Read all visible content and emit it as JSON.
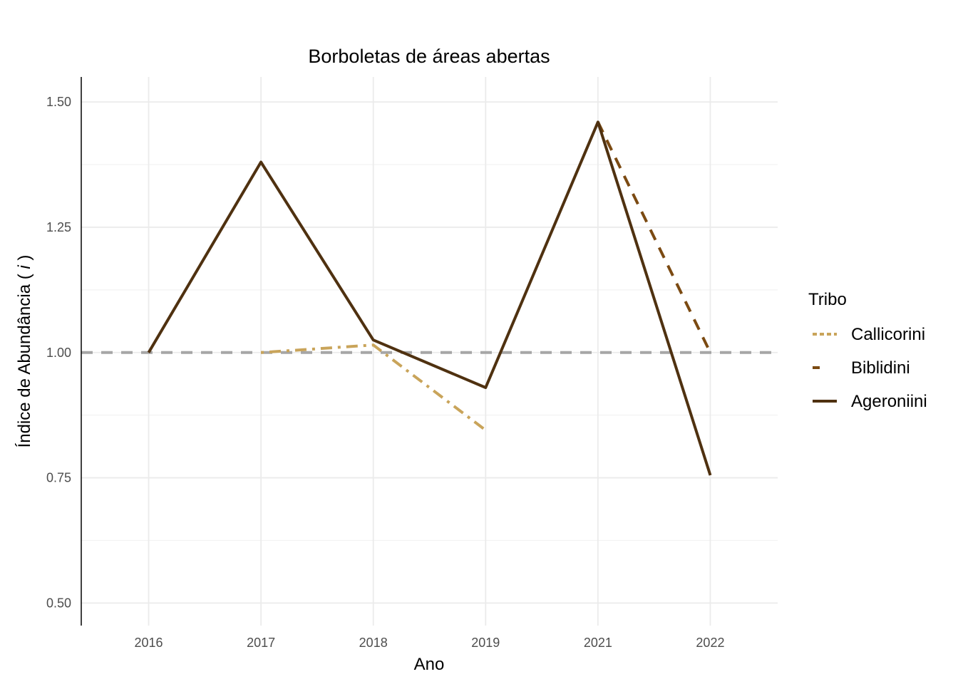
{
  "chart_data": {
    "type": "line",
    "title": "Borboletas de áreas abertas",
    "xlabel": "Ano",
    "ylabel_prefix": "Índice de Abundância ( ",
    "ylabel_var": "i",
    "ylabel_suffix": " )",
    "categories": [
      "2016",
      "2017",
      "2018",
      "2019",
      "2021",
      "2022"
    ],
    "y_ticks": [
      "0.50",
      "0.75",
      "1.00",
      "1.25",
      "1.50"
    ],
    "y_tick_values": [
      0.5,
      0.75,
      1.0,
      1.25,
      1.5
    ],
    "ylim": [
      0.455,
      1.55
    ],
    "reference_line": {
      "y": 1.0,
      "color": "#a6a6a6",
      "style": "dashed"
    },
    "grid": true,
    "legend": {
      "title": "Tribo",
      "position": "right"
    },
    "series": [
      {
        "name": "Callicorini",
        "color": "#c9a45a",
        "dash": "dotdash",
        "points": [
          [
            "2017",
            1.0
          ],
          [
            "2018",
            1.015
          ],
          [
            "2019",
            0.845
          ]
        ]
      },
      {
        "name": "Biblidini",
        "color": "#7b4a12",
        "dash": "dashed",
        "points": [
          [
            "2021",
            1.46
          ],
          [
            "2022",
            1.0
          ]
        ]
      },
      {
        "name": "Ageroniini",
        "color": "#4f3110",
        "dash": "solid",
        "points": [
          [
            "2016",
            1.0
          ],
          [
            "2017",
            1.38
          ],
          [
            "2018",
            1.025
          ],
          [
            "2019",
            0.93
          ],
          [
            "2021",
            1.46
          ],
          [
            "2022",
            0.755
          ]
        ]
      }
    ]
  }
}
